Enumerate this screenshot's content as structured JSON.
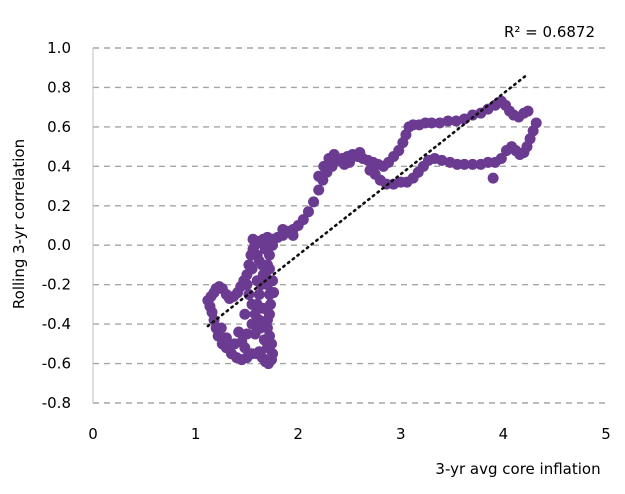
{
  "chart_data": {
    "type": "scatter",
    "title": "",
    "xlabel": "3-yr avg core inflation",
    "ylabel": "Rolling 3-yr correlation",
    "xlim": [
      0,
      5
    ],
    "ylim": [
      -0.8,
      1.0
    ],
    "x_ticks": [
      0,
      1,
      2,
      3,
      4,
      5
    ],
    "x_tick_labels": [
      "0",
      "1",
      "2",
      "3",
      "4",
      "5"
    ],
    "y_ticks": [
      1.0,
      0.8,
      0.6,
      0.4,
      0.2,
      0.0,
      -0.2,
      -0.4,
      -0.6,
      -0.8
    ],
    "y_tick_labels": [
      "1.0",
      "0.8",
      "0.6",
      "0.4",
      "0.2",
      "0.0",
      "-0.2",
      "-0.4",
      "-0.6",
      "-0.8"
    ],
    "grid": "horizontal-dashed",
    "annotation": "R² = 0.6872",
    "trendline": {
      "style": "dotted",
      "color": "#111111",
      "points": [
        [
          1.12,
          -0.41
        ],
        [
          4.22,
          0.86
        ]
      ]
    },
    "series": [
      {
        "color": "#6b3a91",
        "points": [
          [
            1.12,
            -0.28
          ],
          [
            1.15,
            -0.26
          ],
          [
            1.18,
            -0.24
          ],
          [
            1.2,
            -0.22
          ],
          [
            1.23,
            -0.21
          ],
          [
            1.26,
            -0.22
          ],
          [
            1.3,
            -0.25
          ],
          [
            1.33,
            -0.27
          ],
          [
            1.37,
            -0.26
          ],
          [
            1.41,
            -0.24
          ],
          [
            1.44,
            -0.21
          ],
          [
            1.47,
            -0.18
          ],
          [
            1.5,
            -0.15
          ],
          [
            1.52,
            -0.1
          ],
          [
            1.54,
            -0.05
          ],
          [
            1.56,
            -0.02
          ],
          [
            1.58,
            0.0
          ],
          [
            1.62,
            0.02
          ],
          [
            1.66,
            0.03
          ],
          [
            1.7,
            0.04
          ],
          [
            1.75,
            0.03
          ],
          [
            1.8,
            0.04
          ],
          [
            1.85,
            0.05
          ],
          [
            1.9,
            0.07
          ],
          [
            1.95,
            0.08
          ],
          [
            2.0,
            0.1
          ],
          [
            2.05,
            0.13
          ],
          [
            2.1,
            0.17
          ],
          [
            2.15,
            0.22
          ],
          [
            2.2,
            0.28
          ],
          [
            2.24,
            0.33
          ],
          [
            2.28,
            0.37
          ],
          [
            2.33,
            0.4
          ],
          [
            2.38,
            0.43
          ],
          [
            2.43,
            0.44
          ],
          [
            2.48,
            0.45
          ],
          [
            2.53,
            0.46
          ],
          [
            2.58,
            0.45
          ],
          [
            2.63,
            0.44
          ],
          [
            2.68,
            0.43
          ],
          [
            2.73,
            0.42
          ],
          [
            2.78,
            0.41
          ],
          [
            2.83,
            0.4
          ],
          [
            2.88,
            0.42
          ],
          [
            2.93,
            0.45
          ],
          [
            2.98,
            0.48
          ],
          [
            3.02,
            0.52
          ],
          [
            3.05,
            0.56
          ],
          [
            3.08,
            0.6
          ],
          [
            3.12,
            0.61
          ],
          [
            3.18,
            0.61
          ],
          [
            3.24,
            0.62
          ],
          [
            3.3,
            0.62
          ],
          [
            3.38,
            0.62
          ],
          [
            3.46,
            0.63
          ],
          [
            3.54,
            0.63
          ],
          [
            3.62,
            0.64
          ],
          [
            3.7,
            0.66
          ],
          [
            3.78,
            0.67
          ],
          [
            3.85,
            0.69
          ],
          [
            3.92,
            0.71
          ],
          [
            3.98,
            0.73
          ],
          [
            4.02,
            0.71
          ],
          [
            4.06,
            0.68
          ],
          [
            4.1,
            0.66
          ],
          [
            4.15,
            0.65
          ],
          [
            4.2,
            0.67
          ],
          [
            4.24,
            0.68
          ],
          [
            4.32,
            0.62
          ],
          [
            4.29,
            0.58
          ],
          [
            4.26,
            0.54
          ],
          [
            4.23,
            0.5
          ],
          [
            4.2,
            0.47
          ],
          [
            4.16,
            0.46
          ],
          [
            4.12,
            0.48
          ],
          [
            4.08,
            0.5
          ],
          [
            4.03,
            0.48
          ],
          [
            3.98,
            0.44
          ],
          [
            3.92,
            0.42
          ],
          [
            3.85,
            0.42
          ],
          [
            3.78,
            0.41
          ],
          [
            3.7,
            0.41
          ],
          [
            3.62,
            0.41
          ],
          [
            3.55,
            0.41
          ],
          [
            3.48,
            0.42
          ],
          [
            3.4,
            0.43
          ],
          [
            3.33,
            0.44
          ],
          [
            3.27,
            0.43
          ],
          [
            3.22,
            0.4
          ],
          [
            3.17,
            0.37
          ],
          [
            3.12,
            0.34
          ],
          [
            3.06,
            0.32
          ],
          [
            3.0,
            0.32
          ],
          [
            2.93,
            0.31
          ],
          [
            2.86,
            0.31
          ],
          [
            2.8,
            0.33
          ],
          [
            2.75,
            0.36
          ],
          [
            2.7,
            0.38
          ],
          [
            2.3,
            0.44
          ],
          [
            2.35,
            0.46
          ],
          [
            2.25,
            0.4
          ],
          [
            2.45,
            0.41
          ],
          [
            2.2,
            0.35
          ],
          [
            2.6,
            0.47
          ],
          [
            3.9,
            0.34
          ],
          [
            2.5,
            0.42
          ],
          [
            1.95,
            0.05
          ],
          [
            1.85,
            0.08
          ],
          [
            1.75,
            0.0
          ],
          [
            1.68,
            -0.02
          ],
          [
            1.65,
            0.01
          ],
          [
            1.72,
            -0.05
          ],
          [
            1.7,
            -0.1
          ],
          [
            1.68,
            -0.15
          ],
          [
            1.7,
            -0.2
          ],
          [
            1.72,
            -0.25
          ],
          [
            1.73,
            -0.3
          ],
          [
            1.72,
            -0.35
          ],
          [
            1.7,
            -0.38
          ],
          [
            1.7,
            -0.42
          ],
          [
            1.72,
            -0.46
          ],
          [
            1.74,
            -0.5
          ],
          [
            1.75,
            -0.55
          ],
          [
            1.74,
            -0.58
          ],
          [
            1.71,
            -0.6
          ],
          [
            1.68,
            -0.59
          ],
          [
            1.65,
            -0.57
          ],
          [
            1.62,
            -0.54
          ],
          [
            1.55,
            -0.55
          ],
          [
            1.5,
            -0.57
          ],
          [
            1.45,
            -0.58
          ],
          [
            1.4,
            -0.57
          ],
          [
            1.35,
            -0.55
          ],
          [
            1.3,
            -0.52
          ],
          [
            1.26,
            -0.5
          ],
          [
            1.22,
            -0.46
          ],
          [
            1.2,
            -0.42
          ],
          [
            1.18,
            -0.38
          ],
          [
            1.16,
            -0.34
          ],
          [
            1.14,
            -0.31
          ],
          [
            1.25,
            -0.42
          ],
          [
            1.3,
            -0.47
          ],
          [
            1.45,
            -0.49
          ],
          [
            1.5,
            -0.45
          ],
          [
            1.55,
            -0.4
          ],
          [
            1.58,
            -0.35
          ],
          [
            1.6,
            -0.3
          ],
          [
            1.62,
            -0.25
          ],
          [
            1.64,
            -0.2
          ],
          [
            1.66,
            -0.15
          ],
          [
            1.65,
            -0.1
          ],
          [
            1.6,
            -0.05
          ],
          [
            1.55,
            -0.3
          ],
          [
            1.52,
            -0.25
          ],
          [
            1.5,
            -0.2
          ],
          [
            1.48,
            -0.35
          ],
          [
            1.58,
            -0.45
          ],
          [
            1.62,
            -0.38
          ],
          [
            1.66,
            -0.32
          ],
          [
            1.55,
            -0.12
          ],
          [
            1.6,
            -0.18
          ],
          [
            1.63,
            -0.42
          ],
          [
            1.67,
            -0.48
          ],
          [
            1.7,
            -0.52
          ],
          [
            1.38,
            -0.5
          ],
          [
            1.42,
            -0.44
          ],
          [
            1.6,
            -0.55
          ],
          [
            1.48,
            -0.52
          ],
          [
            1.72,
            -0.12
          ],
          [
            1.75,
            -0.18
          ],
          [
            1.76,
            -0.24
          ],
          [
            1.56,
            0.03
          ],
          [
            1.62,
            -0.08
          ]
        ]
      }
    ]
  }
}
